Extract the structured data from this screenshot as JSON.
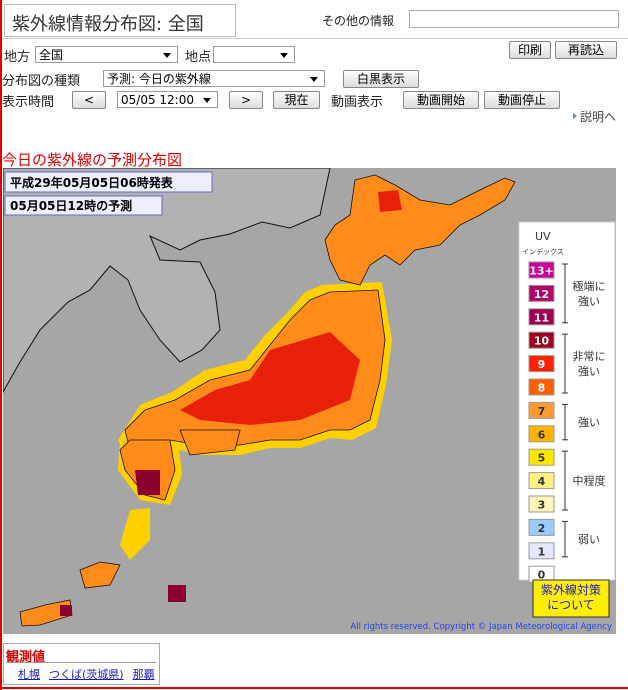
{
  "header": {
    "title": "紫外線情報分布図: 全国",
    "other_info_label": "その他の情報"
  },
  "controls": {
    "region_label": "地方",
    "region_value": "全国",
    "point_label": "地点",
    "print_button": "印刷",
    "reload_button": "再読込",
    "map_type_label": "分布図の種類",
    "map_type_value": "予測: 今日の紫外線",
    "monochrome_button": "白黒表示",
    "time_label": "表示時間",
    "prev_button": "<",
    "time_value": "05/05 12:00",
    "next_button": ">",
    "now_button": "現在",
    "animation_label": "動画表示",
    "start_button": "動画開始",
    "stop_button": "動画停止",
    "help_link": "説明へ"
  },
  "map": {
    "heading": "今日の紫外線の予測分布図",
    "issued": "平成29年05月05日06時発表",
    "forecast": "05月05日12時の予測",
    "copyright": "All rights reserved. Copyright © Japan Meteorological Agency"
  },
  "legend": {
    "title": "UV",
    "subtitle": "インデックス",
    "levels": [
      {
        "label": "13+",
        "color": "#cc0099"
      },
      {
        "label": "12",
        "color": "#b3006b"
      },
      {
        "label": "11",
        "color": "#a0004f"
      },
      {
        "label": "10",
        "color": "#a00020"
      },
      {
        "label": "9",
        "color": "#ff2200"
      },
      {
        "label": "8",
        "color": "#ff5f00"
      },
      {
        "label": "7",
        "color": "#ff9933"
      },
      {
        "label": "6",
        "color": "#ffb400"
      },
      {
        "label": "5",
        "color": "#ffe600"
      },
      {
        "label": "4",
        "color": "#fff080"
      },
      {
        "label": "3",
        "color": "#fff5b8"
      },
      {
        "label": "2",
        "color": "#99ccff"
      },
      {
        "label": "1",
        "color": "#e6e6ff"
      },
      {
        "label": "0",
        "color": "#ffffff"
      }
    ],
    "groups": [
      {
        "lines": [
          "極端に",
          "強い"
        ]
      },
      {
        "lines": [
          "非常に",
          "強い"
        ]
      },
      {
        "lines": [
          "強い"
        ]
      },
      {
        "lines": [
          "中程度"
        ]
      },
      {
        "lines": [
          "弱い"
        ]
      }
    ],
    "button_lines": [
      "紫外線対策",
      "について"
    ]
  },
  "observations": {
    "title": "観測値",
    "links": [
      "札幌",
      "つくば(茨城県)",
      "那覇"
    ]
  }
}
